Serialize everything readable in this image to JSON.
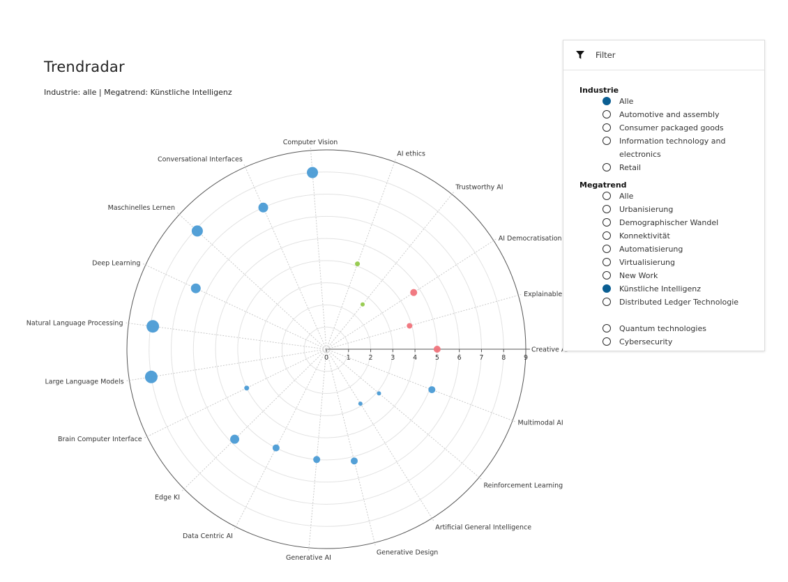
{
  "page": {
    "title": "Trendradar",
    "subtitle": "Industrie: alle | Megatrend: Künstliche Intelligenz"
  },
  "filter": {
    "title": "Filter",
    "industrie": {
      "label": "Industrie",
      "selected": "Alle",
      "options": [
        "Alle",
        "Automotive and assembly",
        "Consumer packaged goods",
        "Information technology and electronics",
        "Retail"
      ]
    },
    "megatrend": {
      "label": "Megatrend",
      "selected": "Künstliche Intelligenz",
      "options": [
        "Alle",
        "Urbanisierung",
        "Demographischer Wandel",
        "Konnektivität",
        "Automatisierung",
        "Virtualisierung",
        "New Work",
        "Künstliche Intelligenz",
        "Distributed Ledger Technologie",
        "Quantum technologies",
        "Cybersecurity"
      ]
    },
    "colors": {
      "selected": "#0a5e92"
    }
  },
  "chart_data": {
    "type": "scatter",
    "subtype": "polar",
    "radial_range": [
      0,
      9
    ],
    "radial_ticks": [
      "0",
      "1",
      "2",
      "3",
      "4",
      "5",
      "6",
      "7",
      "8",
      "9"
    ],
    "axes": [
      {
        "label": "Creative AI",
        "angle": 0
      },
      {
        "label": "Explainable AI",
        "angle": 15.7
      },
      {
        "label": "AI Democratisation",
        "angle": 33
      },
      {
        "label": "Trustworthy AI",
        "angle": 51
      },
      {
        "label": "AI ethics",
        "angle": 70
      },
      {
        "label": "Computer Vision",
        "angle": 94.5
      },
      {
        "label": "Conversational Interfaces",
        "angle": 114
      },
      {
        "label": "Maschinelles Lernen",
        "angle": 137.5
      },
      {
        "label": "Deep Learning",
        "angle": 155
      },
      {
        "label": "Natural Language Processing",
        "angle": 172.5
      },
      {
        "label": "Large Language Models",
        "angle": 189
      },
      {
        "label": "Brain Computer Interface",
        "angle": 206
      },
      {
        "label": "Edge KI",
        "angle": 224.5
      },
      {
        "label": "Data Centric AI",
        "angle": 243
      },
      {
        "label": "Generative AI",
        "angle": 265
      },
      {
        "label": "Generative Design",
        "angle": 284
      },
      {
        "label": "Artificial General Intelligence",
        "angle": 302
      },
      {
        "label": "Reinforcement Learning",
        "angle": 320
      },
      {
        "label": "Multimodal AI",
        "angle": 339
      }
    ],
    "points": [
      {
        "axis": "Creative AI",
        "r": 5.0,
        "size": 5,
        "color": "#f0737b"
      },
      {
        "axis": "Explainable AI",
        "r": 3.9,
        "size": 4,
        "color": "#f0737b"
      },
      {
        "axis": "AI Democratisation",
        "r": 4.7,
        "size": 5,
        "color": "#f0737b"
      },
      {
        "axis": "Trustworthy AI",
        "r": 2.6,
        "size": 3,
        "color": "#94c94a"
      },
      {
        "axis": "AI ethics",
        "r": 4.1,
        "size": 3.5,
        "color": "#94c94a"
      },
      {
        "axis": "Computer Vision",
        "r": 8.0,
        "size": 8,
        "color": "#4a9bd5"
      },
      {
        "axis": "Conversational Interfaces",
        "r": 7.0,
        "size": 7,
        "color": "#4a9bd5"
      },
      {
        "axis": "Maschinelles Lernen",
        "r": 7.9,
        "size": 8,
        "color": "#4a9bd5"
      },
      {
        "axis": "Deep Learning",
        "r": 6.5,
        "size": 7,
        "color": "#4a9bd5"
      },
      {
        "axis": "Natural Language Processing",
        "r": 7.9,
        "size": 9,
        "color": "#4a9bd5"
      },
      {
        "axis": "Large Language Models",
        "r": 8.0,
        "size": 9,
        "color": "#4a9bd5"
      },
      {
        "axis": "Brain Computer Interface",
        "r": 4.0,
        "size": 3.5,
        "color": "#4a9bd5"
      },
      {
        "axis": "Edge KI",
        "r": 5.8,
        "size": 6.5,
        "color": "#4a9bd5"
      },
      {
        "axis": "Data Centric AI",
        "r": 5.0,
        "size": 5,
        "color": "#4a9bd5"
      },
      {
        "axis": "Generative AI",
        "r": 5.0,
        "size": 5,
        "color": "#4a9bd5"
      },
      {
        "axis": "Generative Design",
        "r": 5.2,
        "size": 5,
        "color": "#4a9bd5"
      },
      {
        "axis": "Artificial General Intelligence",
        "r": 2.9,
        "size": 3,
        "color": "#4a9bd5"
      },
      {
        "axis": "Reinforcement Learning",
        "r": 3.1,
        "size": 3,
        "color": "#4a9bd5"
      },
      {
        "axis": "Multimodal AI",
        "r": 5.1,
        "size": 5,
        "color": "#4a9bd5"
      }
    ]
  }
}
